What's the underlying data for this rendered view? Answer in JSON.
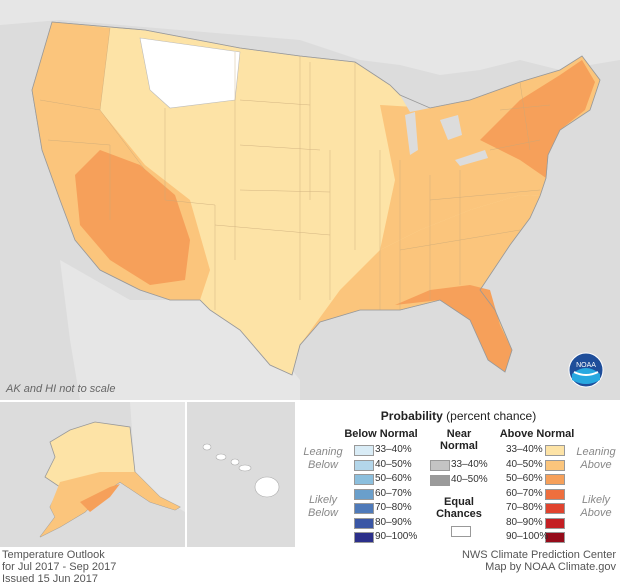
{
  "map": {
    "scale_note": "AK and HI not to scale"
  },
  "legend": {
    "title_bold": "Probability",
    "title_rest": " (percent chance)",
    "below": {
      "heading": "Below Normal",
      "leaning": "Leaning Below",
      "likely": "Likely Below",
      "items": [
        {
          "label": "33–40%",
          "color": "#d9ecf6"
        },
        {
          "label": "40–50%",
          "color": "#b3d6ea"
        },
        {
          "label": "50–60%",
          "color": "#8cbfdd"
        },
        {
          "label": "60–70%",
          "color": "#6a9fcb"
        },
        {
          "label": "70–80%",
          "color": "#4f7ab9"
        },
        {
          "label": "80–90%",
          "color": "#3a56a5"
        },
        {
          "label": "90–100%",
          "color": "#2b2f8a"
        }
      ]
    },
    "near": {
      "heading": "Near Normal",
      "items": [
        {
          "label": "33–40%",
          "color": "#c4c4c4"
        },
        {
          "label": "40–50%",
          "color": "#9a9a9a"
        }
      ]
    },
    "equal": {
      "heading": "Equal Chances",
      "color": "#ffffff"
    },
    "above": {
      "heading": "Above Normal",
      "leaning": "Leaning Above",
      "likely": "Likely Above",
      "items": [
        {
          "label": "33–40%",
          "color": "#fde3a6"
        },
        {
          "label": "40–50%",
          "color": "#fbc57c"
        },
        {
          "label": "50–60%",
          "color": "#f6a05a"
        },
        {
          "label": "60–70%",
          "color": "#ee6f3e"
        },
        {
          "label": "70–80%",
          "color": "#e0432e"
        },
        {
          "label": "80–90%",
          "color": "#c41f23"
        },
        {
          "label": "90–100%",
          "color": "#950b1a"
        }
      ]
    }
  },
  "footer": {
    "left": [
      "Temperature Outlook",
      "for Jul 2017 - Sep 2017",
      "Issued 15 Jun 2017"
    ],
    "right": [
      "NWS Climate Prediction Center",
      "Map by NOAA Climate.gov"
    ]
  },
  "logo": {
    "text": "NOAA"
  }
}
